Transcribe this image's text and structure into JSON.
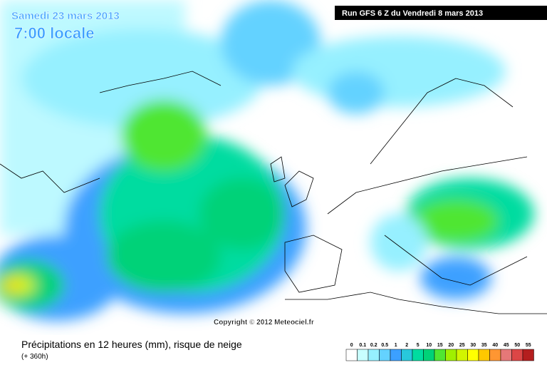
{
  "header": {
    "date": "Samedi 23 mars 2013",
    "time": "7:00 locale",
    "run": "Run GFS 6 Z du Vendredi 8 mars 2013"
  },
  "copyright": "Copyright © 2012 Meteociel.fr",
  "footer": {
    "title": "Précipitations en 12 heures (mm), risque de neige",
    "lead": "(+ 360h)"
  },
  "legend": {
    "levels": [
      0,
      0.1,
      0.2,
      0.5,
      1,
      2,
      5,
      10,
      15,
      20,
      25,
      30,
      35,
      40,
      45,
      50,
      55
    ],
    "colors": [
      "#ffffff",
      "#c8ffff",
      "#96f0ff",
      "#64d2ff",
      "#3ca0ff",
      "#28c8dc",
      "#00dca0",
      "#00d278",
      "#50e632",
      "#a0f000",
      "#d2f500",
      "#ffff00",
      "#ffc800",
      "#ff9632",
      "#e67878",
      "#dc4646",
      "#b41e1e"
    ]
  }
}
